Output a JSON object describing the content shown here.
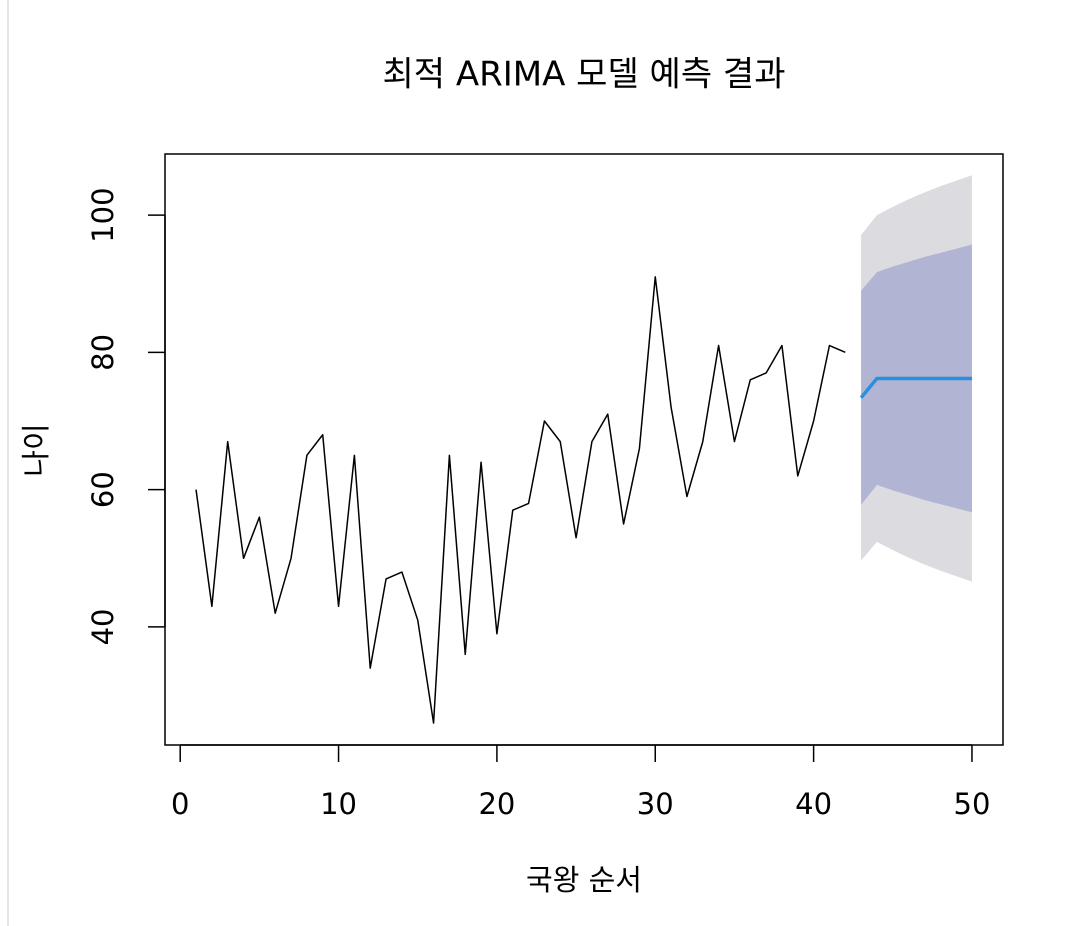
{
  "chart_data": {
    "type": "line",
    "title": "최적 ARIMA 모델 예측 결과",
    "x_label": "국왕 순서",
    "y_label": "나이",
    "xlim": [
      -0.96,
      51.96
    ],
    "ylim": [
      22.8,
      108.9
    ],
    "xticks": [
      0,
      10,
      20,
      30,
      40,
      50
    ],
    "yticks": [
      40,
      60,
      80,
      100
    ],
    "bands": [
      {
        "color": "#dbdbe0",
        "x": [
          43,
          44,
          45,
          46,
          47,
          48,
          49,
          50
        ],
        "lower": [
          49.7,
          52.4,
          51.2,
          50.1,
          49.1,
          48.2,
          47.4,
          46.6
        ],
        "upper": [
          97.1,
          100.0,
          101.2,
          102.3,
          103.3,
          104.2,
          105.0,
          105.8
        ]
      },
      {
        "color": "#b1b5d3",
        "x": [
          43,
          44,
          45,
          46,
          47,
          48,
          49,
          50
        ],
        "lower": [
          57.8,
          60.7,
          59.9,
          59.2,
          58.5,
          57.9,
          57.3,
          56.7
        ],
        "upper": [
          89.0,
          91.7,
          92.5,
          93.2,
          93.9,
          94.5,
          95.1,
          95.7
        ]
      }
    ],
    "series": [
      {
        "color": "#000000",
        "width": 1.5,
        "x": [
          1,
          2,
          3,
          4,
          5,
          6,
          7,
          8,
          9,
          10,
          11,
          12,
          13,
          14,
          15,
          16,
          17,
          18,
          19,
          20,
          21,
          22,
          23,
          24,
          25,
          26,
          27,
          28,
          29,
          30,
          31,
          32,
          33,
          34,
          35,
          36,
          37,
          38,
          39,
          40,
          41,
          42
        ],
        "values": [
          60,
          43,
          67,
          50,
          56,
          42,
          50,
          65,
          68,
          43,
          65,
          34,
          47,
          48,
          41,
          26,
          65,
          36,
          64,
          39,
          57,
          58,
          70,
          67,
          53,
          67,
          71,
          55,
          66,
          91,
          72,
          59,
          67,
          81,
          67,
          76,
          77,
          81,
          62,
          70,
          81,
          80
        ]
      },
      {
        "color": "#2b8fe0",
        "width": 3.5,
        "x": [
          43,
          44,
          45,
          46,
          47,
          48,
          49,
          50
        ],
        "values": [
          73.4,
          76.2,
          76.2,
          76.2,
          76.2,
          76.2,
          76.2,
          76.2
        ]
      }
    ]
  }
}
